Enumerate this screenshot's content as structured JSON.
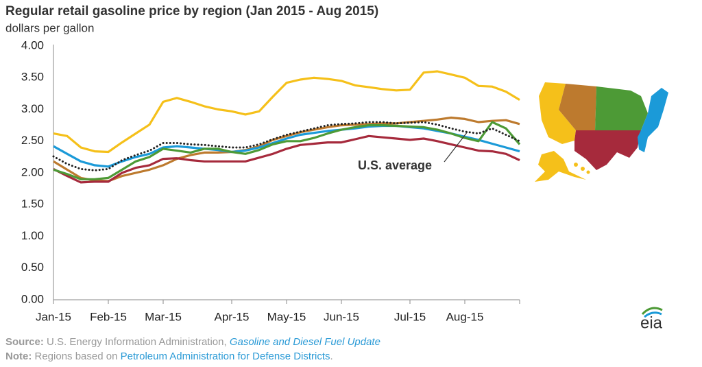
{
  "chart_data": {
    "type": "line",
    "title": "Regular retail gasoline price by region (Jan 2015 - Aug 2015)",
    "subtitle": "dollars per gallon",
    "categories": [
      "Jan-15",
      null,
      null,
      null,
      "Feb-15",
      null,
      null,
      null,
      "Mar-15",
      null,
      null,
      null,
      null,
      "Apr-15",
      null,
      null,
      null,
      "May-15",
      null,
      null,
      null,
      "Jun-15",
      null,
      null,
      null,
      null,
      "Jul-15",
      null,
      null,
      null,
      "Aug-15",
      null,
      null,
      null,
      null
    ],
    "ylim": [
      0,
      4
    ],
    "yticks": [
      {
        "value": 0,
        "label": "0.00"
      },
      {
        "value": 0.5,
        "label": "0.50"
      },
      {
        "value": 1,
        "label": "1.00"
      },
      {
        "value": 1.5,
        "label": "1.50"
      },
      {
        "value": 2,
        "label": "2.00"
      },
      {
        "value": 2.5,
        "label": "2.50"
      },
      {
        "value": 3,
        "label": "3.00"
      },
      {
        "value": 3.5,
        "label": "3.50"
      },
      {
        "value": 4,
        "label": "4.00"
      }
    ],
    "grid": false,
    "series": [
      {
        "color": "#f5c01a",
        "values": [
          2.62,
          2.58,
          2.4,
          2.34,
          2.33,
          2.48,
          2.62,
          2.76,
          3.12,
          3.18,
          3.12,
          3.05,
          3.0,
          2.97,
          2.92,
          2.97,
          3.2,
          3.42,
          3.47,
          3.5,
          3.48,
          3.45,
          3.38,
          3.35,
          3.32,
          3.3,
          3.31,
          3.58,
          3.6,
          3.55,
          3.5,
          3.37,
          3.36,
          3.28,
          3.15
        ]
      },
      {
        "color": "#bd7a2e",
        "values": [
          2.18,
          2.05,
          1.92,
          1.88,
          1.87,
          1.95,
          2.0,
          2.05,
          2.12,
          2.22,
          2.28,
          2.32,
          2.32,
          2.33,
          2.36,
          2.42,
          2.52,
          2.58,
          2.64,
          2.68,
          2.72,
          2.75,
          2.76,
          2.77,
          2.78,
          2.78,
          2.8,
          2.82,
          2.84,
          2.87,
          2.85,
          2.8,
          2.82,
          2.83,
          2.77
        ]
      },
      {
        "color": "#1b9ad8",
        "values": [
          2.42,
          2.3,
          2.18,
          2.12,
          2.1,
          2.18,
          2.25,
          2.3,
          2.4,
          2.42,
          2.4,
          2.38,
          2.36,
          2.33,
          2.35,
          2.4,
          2.47,
          2.54,
          2.6,
          2.63,
          2.66,
          2.68,
          2.7,
          2.73,
          2.74,
          2.74,
          2.72,
          2.7,
          2.66,
          2.62,
          2.57,
          2.52,
          2.46,
          2.4,
          2.34
        ]
      },
      {
        "color": "#a62a3c",
        "values": [
          2.06,
          1.95,
          1.85,
          1.86,
          1.86,
          2.0,
          2.08,
          2.12,
          2.22,
          2.23,
          2.2,
          2.18,
          2.18,
          2.18,
          2.18,
          2.24,
          2.3,
          2.38,
          2.44,
          2.46,
          2.48,
          2.48,
          2.53,
          2.58,
          2.56,
          2.54,
          2.52,
          2.54,
          2.5,
          2.45,
          2.4,
          2.35,
          2.34,
          2.3,
          2.2
        ]
      },
      {
        "color": "#4d9a36",
        "values": [
          2.05,
          1.98,
          1.9,
          1.9,
          1.92,
          2.05,
          2.18,
          2.25,
          2.38,
          2.35,
          2.32,
          2.38,
          2.38,
          2.33,
          2.3,
          2.36,
          2.45,
          2.5,
          2.5,
          2.55,
          2.62,
          2.68,
          2.72,
          2.75,
          2.75,
          2.74,
          2.73,
          2.72,
          2.68,
          2.62,
          2.55,
          2.5,
          2.8,
          2.7,
          2.45
        ]
      },
      {
        "name": "U.S. average",
        "color": "#222222",
        "dash": "dotted",
        "values": [
          2.26,
          2.14,
          2.06,
          2.04,
          2.06,
          2.2,
          2.28,
          2.35,
          2.47,
          2.47,
          2.45,
          2.44,
          2.42,
          2.4,
          2.4,
          2.45,
          2.53,
          2.6,
          2.65,
          2.7,
          2.75,
          2.77,
          2.78,
          2.8,
          2.8,
          2.78,
          2.79,
          2.8,
          2.76,
          2.7,
          2.65,
          2.62,
          2.7,
          2.6,
          2.5
        ]
      }
    ],
    "source": {
      "label": "Source:",
      "text": " U.S. Energy Information Administration, ",
      "link": "Gasoline and Diesel Fuel Update"
    },
    "note": {
      "label": "Note:",
      "text": " Regions based on ",
      "link": "Petroleum Administration for Defense Districts",
      "tail": "."
    },
    "logo": "eia"
  }
}
